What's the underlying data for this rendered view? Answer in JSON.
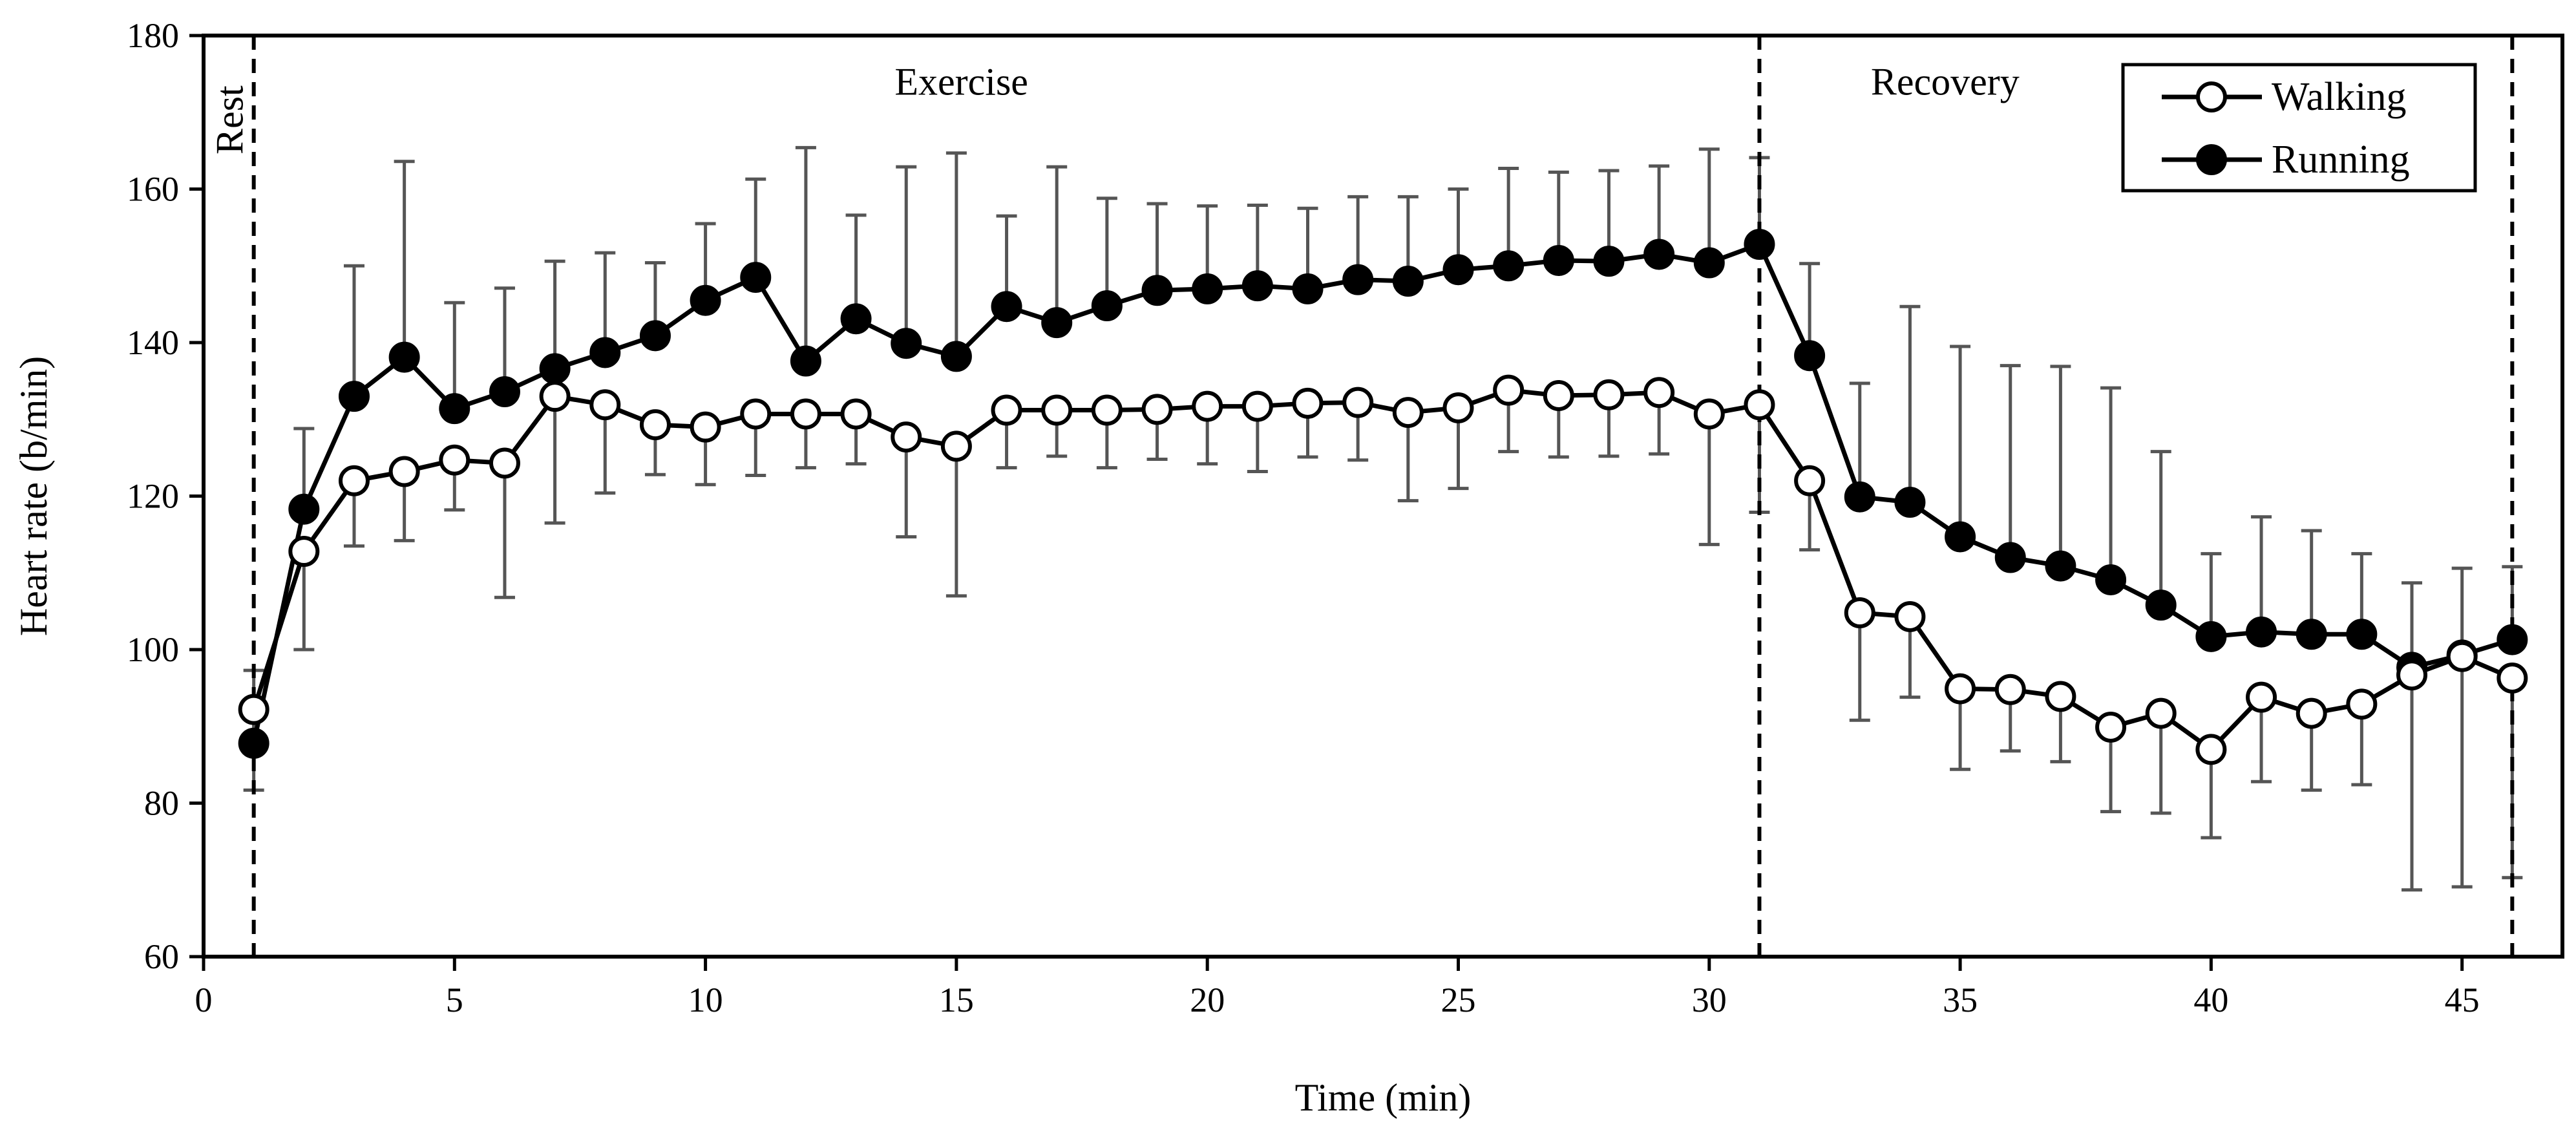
{
  "chart_data": {
    "type": "line",
    "title": "",
    "xlabel": "Time (min)",
    "ylabel": "Heart rate (b/min)",
    "xlim": [
      0,
      47
    ],
    "ylim": [
      60,
      180
    ],
    "xticks": [
      0,
      5,
      10,
      15,
      20,
      25,
      30,
      35,
      40,
      45
    ],
    "yticks": [
      60,
      80,
      100,
      120,
      140,
      160,
      180
    ],
    "grid": false,
    "legend_position": "top-right",
    "phase_markers": [
      1,
      31,
      46
    ],
    "phase_labels": [
      {
        "text": "Rest",
        "x": 0.55,
        "y": 169,
        "rotate": true
      },
      {
        "text": "Exercise",
        "x": 15.1,
        "y": 174
      },
      {
        "text": "Recovery",
        "x": 34.7,
        "y": 174
      }
    ],
    "x": [
      1,
      2,
      3,
      4,
      5,
      6,
      7,
      8,
      9,
      10,
      11,
      12,
      13,
      14,
      15,
      16,
      17,
      18,
      19,
      20,
      21,
      22,
      23,
      24,
      25,
      26,
      27,
      28,
      29,
      30,
      31,
      32,
      33,
      34,
      35,
      36,
      37,
      38,
      39,
      40,
      41,
      42,
      43,
      44,
      45,
      46
    ],
    "series": [
      {
        "name": "Walking",
        "marker": "open-circle",
        "values": [
          92.2,
          112.8,
          122.0,
          123.2,
          124.7,
          124.3,
          133.0,
          131.9,
          129.3,
          129.0,
          130.7,
          130.7,
          130.7,
          127.7,
          126.5,
          131.2,
          131.2,
          131.2,
          131.3,
          131.7,
          131.7,
          132.1,
          132.2,
          130.9,
          131.5,
          133.8,
          133.1,
          133.2,
          133.5,
          130.7,
          131.9,
          122.0,
          104.8,
          104.3,
          94.9,
          94.8,
          93.9,
          89.9,
          91.7,
          87.0,
          93.8,
          91.7,
          92.9,
          96.7,
          99.1,
          96.3
        ],
        "errors": [
          10.5,
          12.8,
          8.5,
          9.0,
          6.5,
          17.5,
          16.5,
          11.5,
          6.5,
          7.5,
          8.0,
          7.0,
          6.5,
          13.0,
          19.5,
          7.5,
          6.0,
          7.5,
          6.5,
          7.5,
          8.5,
          7.0,
          7.5,
          11.5,
          10.5,
          8.0,
          8.0,
          8.0,
          8.0,
          17.0,
          14.0,
          9.0,
          14.0,
          10.5,
          10.5,
          8.0,
          8.5,
          11.0,
          13.0,
          11.5,
          11.0,
          10.0,
          10.5,
          28.0,
          30.0,
          26.0
        ]
      },
      {
        "name": "Running",
        "marker": "filled-circle",
        "values": [
          87.8,
          118.3,
          133.0,
          138.1,
          131.4,
          133.6,
          136.6,
          138.7,
          140.9,
          145.5,
          148.5,
          137.6,
          143.1,
          139.9,
          138.2,
          144.7,
          142.6,
          144.8,
          146.8,
          147.0,
          147.4,
          147.0,
          148.2,
          148.0,
          149.5,
          150.0,
          150.7,
          150.6,
          151.5,
          150.4,
          152.8,
          138.3,
          119.9,
          119.2,
          114.7,
          112.0,
          110.9,
          109.1,
          105.8,
          101.7,
          102.3,
          102.0,
          102.0,
          97.7,
          99.3,
          101.3
        ],
        "errors": [
          9.5,
          10.5,
          17.0,
          25.5,
          13.8,
          13.5,
          14.0,
          13.0,
          9.5,
          10.0,
          12.8,
          27.8,
          13.5,
          23.0,
          26.5,
          11.8,
          20.3,
          14.0,
          11.3,
          10.8,
          10.5,
          10.5,
          10.8,
          11.0,
          10.5,
          12.7,
          11.5,
          11.8,
          11.5,
          14.8,
          11.3,
          12.0,
          14.8,
          25.5,
          24.8,
          25.0,
          26.0,
          25.0,
          20.0,
          10.8,
          15.0,
          13.5,
          10.5,
          11.0,
          11.3,
          9.5
        ]
      }
    ]
  }
}
